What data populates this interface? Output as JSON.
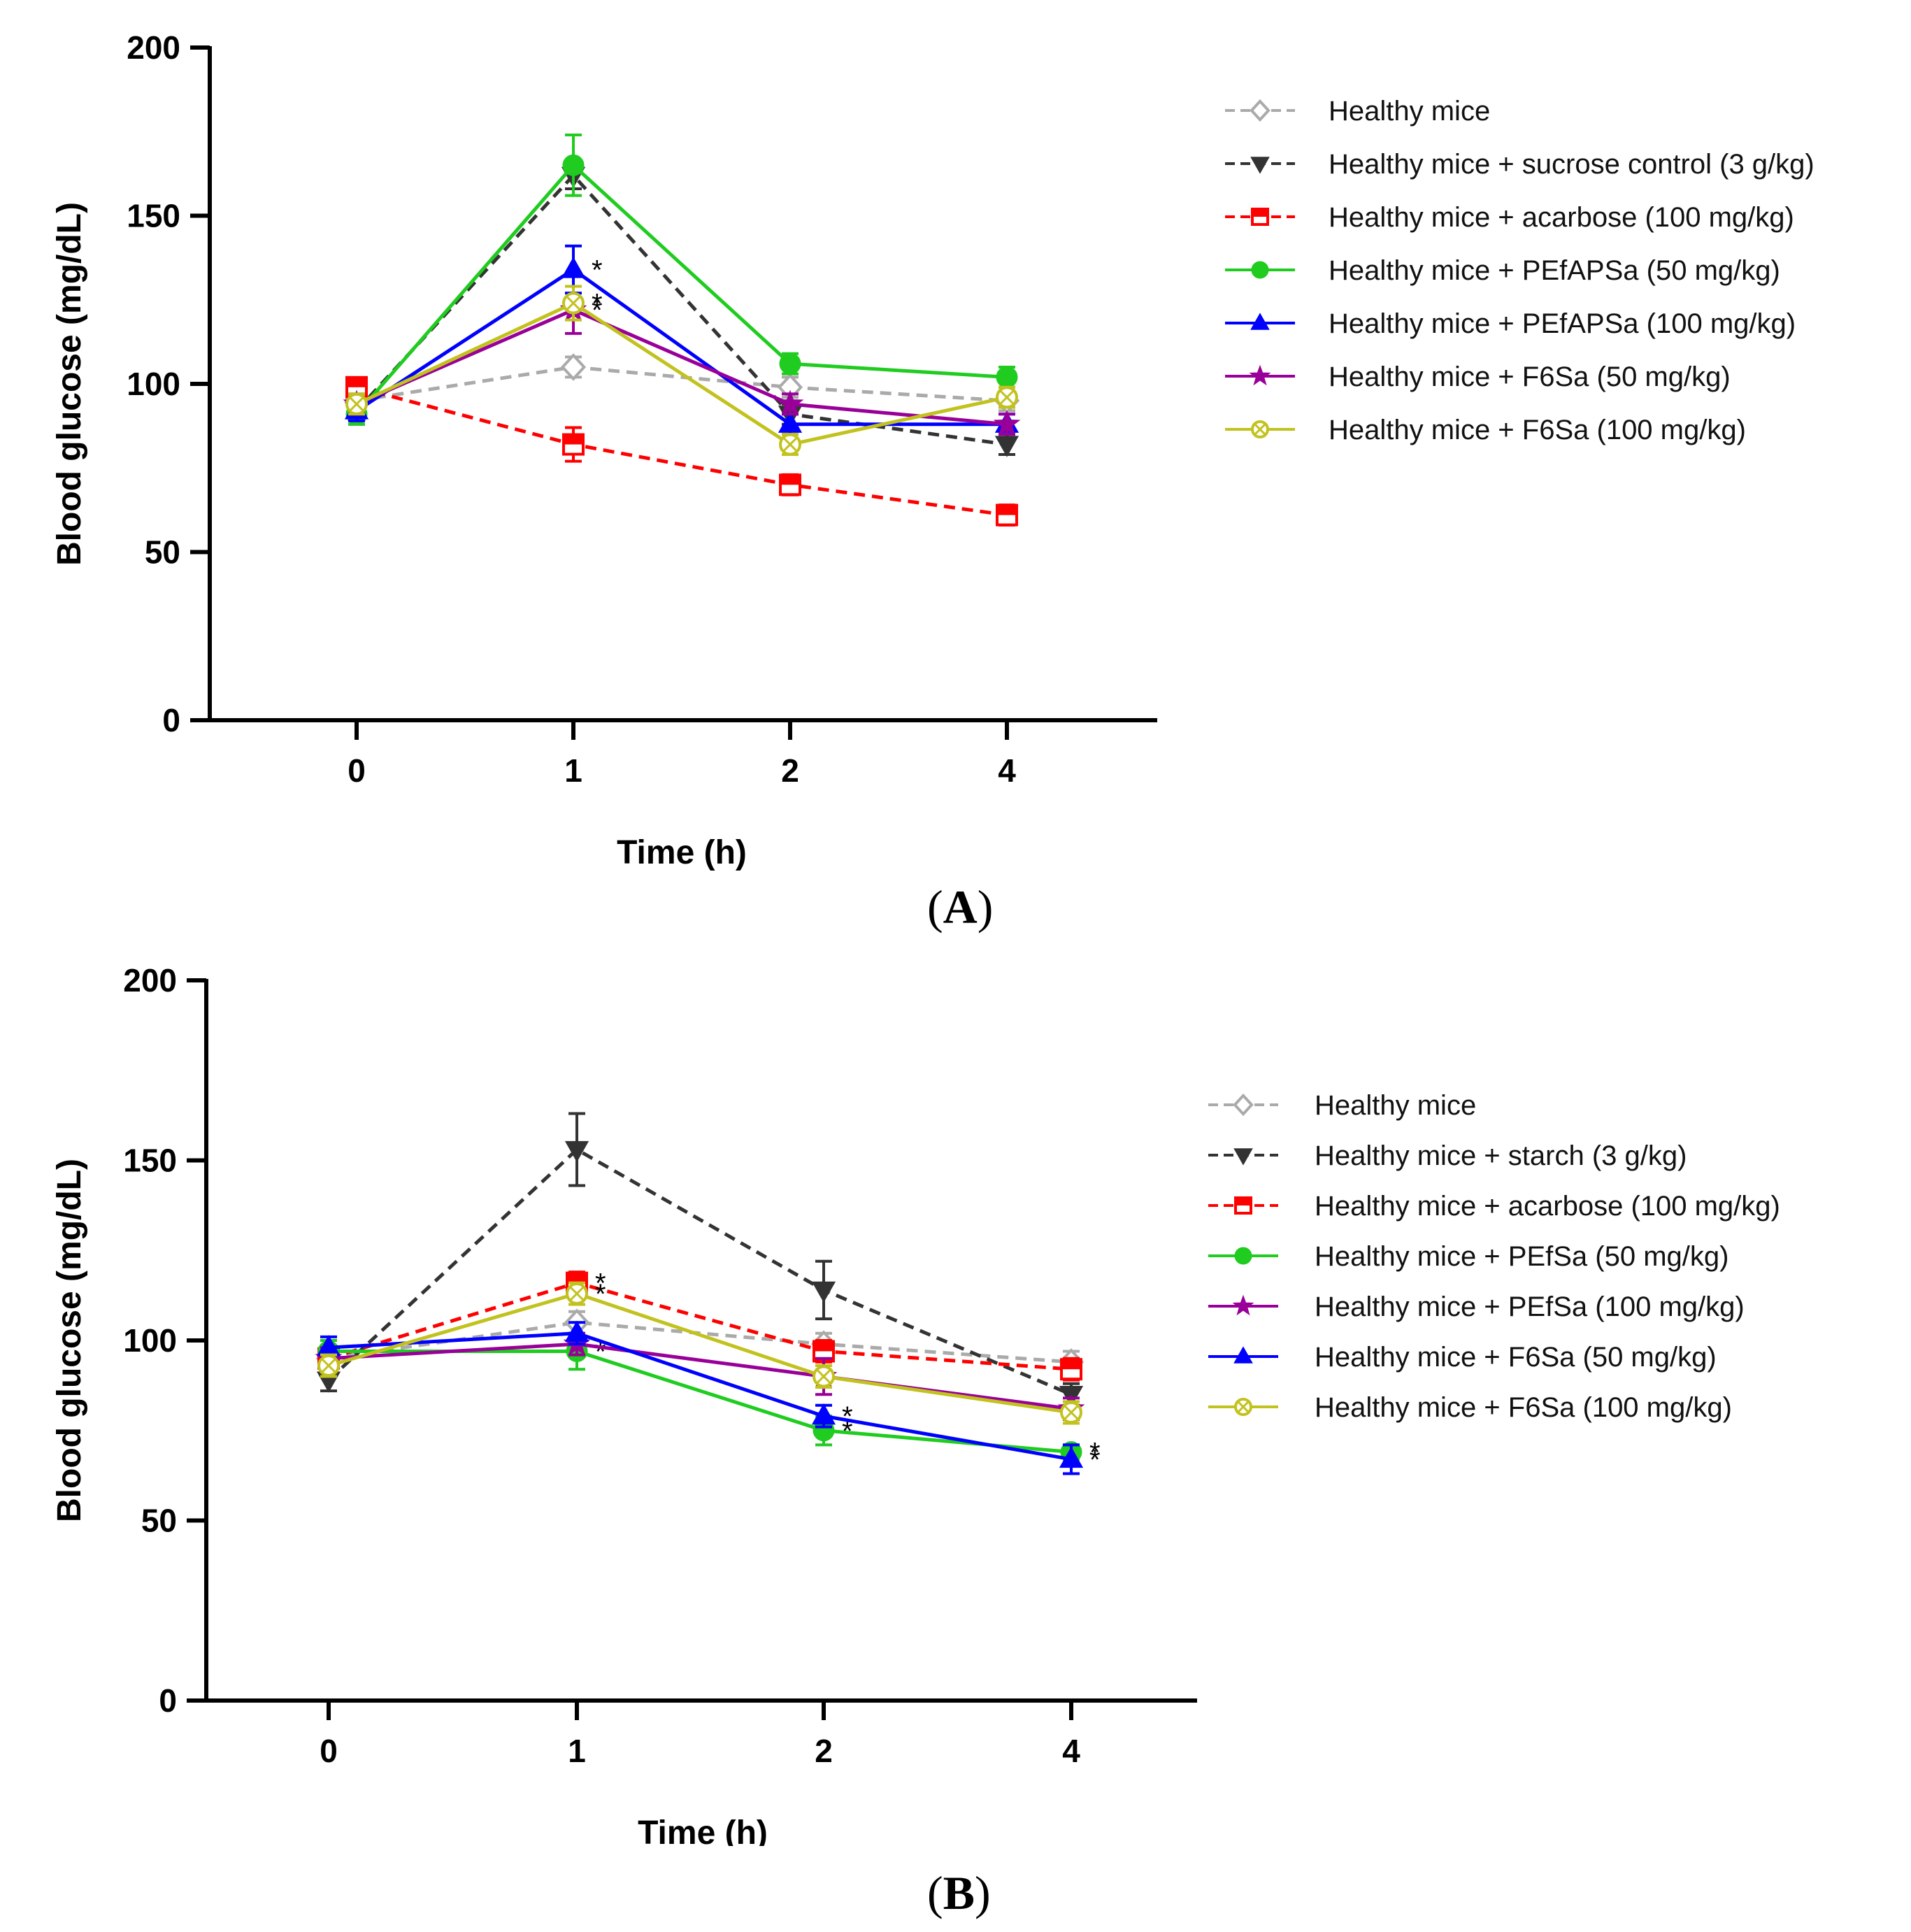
{
  "figure": {
    "panel_a_label": "A",
    "panel_b_label": "B"
  },
  "chart_data": [
    {
      "type": "line",
      "panel": "A",
      "xlabel": "Time (h)",
      "ylabel": "Blood glucose (mg/dL)",
      "categories": [
        "0",
        "1",
        "2",
        "4"
      ],
      "ylim": [
        0,
        200
      ],
      "yticks": [
        0,
        50,
        100,
        150,
        200
      ],
      "legend_position": "right",
      "series": [
        {
          "name": "Healthy mice",
          "color": "#aaaaaa",
          "dashed": true,
          "marker": "diamond-open",
          "values": [
            95,
            105,
            99,
            95
          ],
          "errors": [
            3,
            3,
            3,
            3
          ],
          "stars": [
            false,
            false,
            false,
            false
          ]
        },
        {
          "name": "Healthy mice + sucrose control (3 g/kg)",
          "color": "#333333",
          "dashed": true,
          "marker": "triangle-down",
          "values": [
            92,
            162,
            91,
            82
          ],
          "errors": [
            4,
            4,
            3,
            3
          ],
          "stars": [
            false,
            false,
            false,
            false
          ]
        },
        {
          "name": "Healthy mice + acarbose (100 mg/kg)",
          "color": "#ff0000",
          "dashed": true,
          "marker": "square-half",
          "values": [
            99,
            82,
            70,
            61
          ],
          "errors": [
            2,
            5,
            3,
            3
          ],
          "stars": [
            false,
            false,
            false,
            false
          ]
        },
        {
          "name": "Healthy mice + PEfAPSa (50 mg/kg)",
          "color": "#1fcc1f",
          "dashed": false,
          "marker": "circle",
          "values": [
            91,
            165,
            106,
            102
          ],
          "errors": [
            3,
            9,
            3,
            3
          ],
          "stars": [
            false,
            false,
            false,
            false
          ]
        },
        {
          "name": "Healthy mice + PEfAPSa (100 mg/kg)",
          "color": "#0000ff",
          "dashed": false,
          "marker": "triangle-up",
          "values": [
            92,
            134,
            88,
            88
          ],
          "errors": [
            3,
            7,
            3,
            3
          ],
          "stars": [
            false,
            true,
            false,
            false
          ]
        },
        {
          "name": "Healthy mice + F6Sa (50 mg/kg)",
          "color": "#990099",
          "dashed": false,
          "marker": "star",
          "values": [
            94,
            122,
            94,
            88
          ],
          "errors": [
            3,
            7,
            3,
            3
          ],
          "stars": [
            false,
            true,
            false,
            false
          ]
        },
        {
          "name": "Healthy mice + F6Sa (100 mg/kg)",
          "color": "#c2c21f",
          "dashed": false,
          "marker": "circle-x",
          "values": [
            94,
            124,
            82,
            96
          ],
          "errors": [
            3,
            5,
            3,
            3
          ],
          "stars": [
            false,
            true,
            false,
            false
          ]
        }
      ]
    },
    {
      "type": "line",
      "panel": "B",
      "xlabel": "Time (h)",
      "ylabel": "Blood glucose (mg/dL)",
      "categories": [
        "0",
        "1",
        "2",
        "4"
      ],
      "ylim": [
        0,
        200
      ],
      "yticks": [
        0,
        50,
        100,
        150,
        200
      ],
      "legend_position": "right",
      "series": [
        {
          "name": "Healthy mice",
          "color": "#aaaaaa",
          "dashed": true,
          "marker": "diamond-open",
          "values": [
            95,
            105,
            99,
            94
          ],
          "errors": [
            3,
            3,
            3,
            3
          ],
          "stars": [
            false,
            false,
            false,
            false
          ]
        },
        {
          "name": "Healthy mice + starch (3 g/kg)",
          "color": "#333333",
          "dashed": true,
          "marker": "triangle-down",
          "values": [
            89,
            153,
            114,
            85
          ],
          "errors": [
            3,
            10,
            8,
            3
          ],
          "stars": [
            false,
            false,
            false,
            false
          ]
        },
        {
          "name": "Healthy mice + acarbose (100 mg/kg)",
          "color": "#ff0000",
          "dashed": true,
          "marker": "square-half",
          "values": [
            95,
            116,
            97,
            92
          ],
          "errors": [
            3,
            3,
            3,
            3
          ],
          "stars": [
            false,
            true,
            false,
            false
          ]
        },
        {
          "name": "Healthy mice + PEfSa (50 mg/kg)",
          "color": "#1fcc1f",
          "dashed": false,
          "marker": "circle",
          "values": [
            97,
            97,
            75,
            69
          ],
          "errors": [
            3,
            5,
            4,
            2
          ],
          "stars": [
            false,
            true,
            true,
            true
          ]
        },
        {
          "name": "Healthy mice + PEfSa (100 mg/kg)",
          "color": "#990099",
          "dashed": false,
          "marker": "star",
          "values": [
            95,
            99,
            90,
            81
          ],
          "errors": [
            3,
            3,
            5,
            3
          ],
          "stars": [
            false,
            false,
            false,
            false
          ]
        },
        {
          "name": "Healthy mice + F6Sa (50 mg/kg)",
          "color": "#0000ff",
          "dashed": false,
          "marker": "triangle-up",
          "values": [
            98,
            102,
            79,
            67
          ],
          "errors": [
            3,
            3,
            3,
            4
          ],
          "stars": [
            false,
            false,
            true,
            true
          ]
        },
        {
          "name": "Healthy mice + F6Sa (100 mg/kg)",
          "color": "#c2c21f",
          "dashed": false,
          "marker": "circle-x",
          "values": [
            93,
            113,
            90,
            80
          ],
          "errors": [
            3,
            3,
            3,
            3
          ],
          "stars": [
            false,
            true,
            false,
            false
          ]
        }
      ]
    }
  ]
}
